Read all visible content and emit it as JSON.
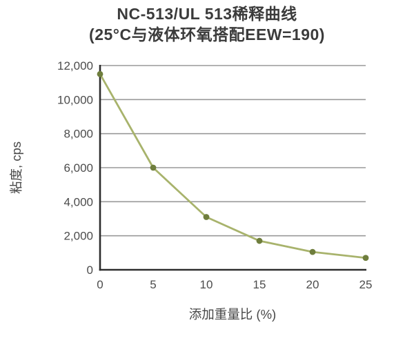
{
  "chart": {
    "title_line1": "NC-513/UL 513稀释曲线",
    "title_line2": "(25°C与液体环氧搭配EEW=190)"
  },
  "chart_data": {
    "type": "line",
    "title": "NC-513/UL 513稀释曲线",
    "subtitle": "(25°C与液体环氧搭配EEW=190)",
    "xlabel": "添加重量比 (%)",
    "ylabel": "粘度, cps",
    "x": [
      0,
      5,
      10,
      15,
      20,
      25
    ],
    "series": [
      {
        "name": "NC-513/UL 513",
        "values": [
          11500,
          6000,
          3100,
          1700,
          1050,
          700
        ]
      }
    ],
    "xlim": [
      0,
      25
    ],
    "ylim": [
      0,
      12000
    ],
    "xticks": {
      "values": [
        0,
        5,
        10,
        15,
        20,
        25
      ],
      "labels": [
        "0",
        "5",
        "10",
        "15",
        "20",
        "25"
      ]
    },
    "yticks": {
      "values": [
        0,
        2000,
        4000,
        6000,
        8000,
        10000,
        12000
      ],
      "labels": [
        "0",
        "2,000",
        "4,000",
        "6,000",
        "8,000",
        "10,000",
        "12,000"
      ]
    },
    "grid": "horizontal",
    "legend": "none"
  },
  "colors": {
    "line": "#a8b36c",
    "marker": "#6f7e3d",
    "grid": "#999999",
    "axis": "#2d2d2d",
    "title_text": "#3b3b3b",
    "tick_text": "#4c4c4c",
    "background": "#ffffff"
  }
}
